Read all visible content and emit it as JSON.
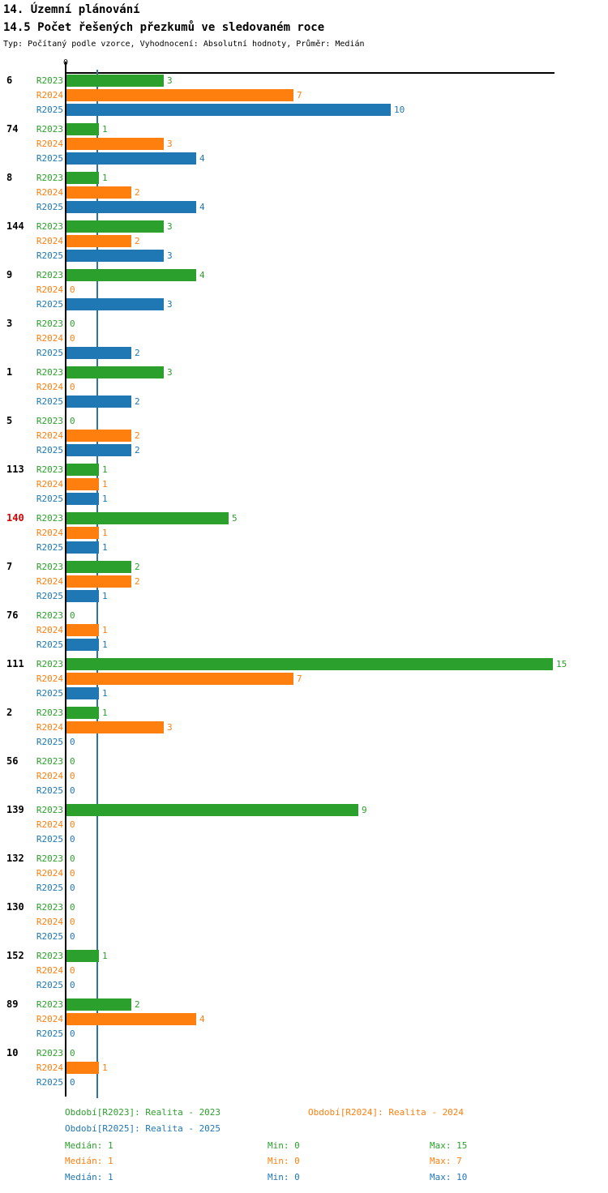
{
  "header": {
    "title": "14. Územní plánování",
    "subtitle": "14.5 Počet řešených přezkumů ve sledovaném roce",
    "meta": "Typ: Počítaný podle vzorce, Vyhodnocení: Absolutní hodnoty, Průměr: Medián"
  },
  "axis": {
    "zero_label": "0"
  },
  "colors": {
    "series": [
      "#2CA02C",
      "#FF7F0E",
      "#1F77B4"
    ],
    "median_line": "#2F74A8",
    "highlight_label": "#DD0000",
    "label_default": "#000000"
  },
  "chart_data": {
    "type": "bar",
    "orientation": "horizontal",
    "title": "14.5 Počet řešených přezkumů ve sledovaném roce",
    "series_labels": [
      "R2023",
      "R2024",
      "R2025"
    ],
    "xlim": [
      0,
      15
    ],
    "median_reference_value": 1,
    "grid": false,
    "groups": [
      {
        "label": "6",
        "highlight": false,
        "values": [
          3,
          7,
          10
        ]
      },
      {
        "label": "74",
        "highlight": false,
        "values": [
          1,
          3,
          4
        ]
      },
      {
        "label": "8",
        "highlight": false,
        "values": [
          1,
          2,
          4
        ]
      },
      {
        "label": "144",
        "highlight": false,
        "values": [
          3,
          2,
          3
        ]
      },
      {
        "label": "9",
        "highlight": false,
        "values": [
          4,
          0,
          3
        ]
      },
      {
        "label": "3",
        "highlight": false,
        "values": [
          0,
          0,
          2
        ]
      },
      {
        "label": "1",
        "highlight": false,
        "values": [
          3,
          0,
          2
        ]
      },
      {
        "label": "5",
        "highlight": false,
        "values": [
          0,
          2,
          2
        ]
      },
      {
        "label": "113",
        "highlight": false,
        "values": [
          1,
          1,
          1
        ]
      },
      {
        "label": "140",
        "highlight": true,
        "values": [
          5,
          1,
          1
        ]
      },
      {
        "label": "7",
        "highlight": false,
        "values": [
          2,
          2,
          1
        ]
      },
      {
        "label": "76",
        "highlight": false,
        "values": [
          0,
          1,
          1
        ]
      },
      {
        "label": "111",
        "highlight": false,
        "values": [
          15,
          7,
          1
        ]
      },
      {
        "label": "2",
        "highlight": false,
        "values": [
          1,
          3,
          0
        ]
      },
      {
        "label": "56",
        "highlight": false,
        "values": [
          0,
          0,
          0
        ]
      },
      {
        "label": "139",
        "highlight": false,
        "values": [
          9,
          0,
          0
        ]
      },
      {
        "label": "132",
        "highlight": false,
        "values": [
          0,
          0,
          0
        ]
      },
      {
        "label": "130",
        "highlight": false,
        "values": [
          0,
          0,
          0
        ]
      },
      {
        "label": "152",
        "highlight": false,
        "values": [
          1,
          0,
          0
        ]
      },
      {
        "label": "89",
        "highlight": false,
        "values": [
          2,
          4,
          0
        ]
      },
      {
        "label": "10",
        "highlight": false,
        "values": [
          0,
          1,
          0
        ]
      }
    ]
  },
  "legend": {
    "period_r2023": "Období[R2023]: Realita - 2023",
    "period_r2024": "Období[R2024]: Realita - 2024",
    "period_r2025": "Období[R2025]: Realita - 2025",
    "stats": [
      {
        "median": "Medián: 1",
        "min": "Min: 0",
        "max": "Max: 15"
      },
      {
        "median": "Medián: 1",
        "min": "Min: 0",
        "max": "Max: 7"
      },
      {
        "median": "Medián: 1",
        "min": "Min: 0",
        "max": "Max: 10"
      }
    ]
  }
}
